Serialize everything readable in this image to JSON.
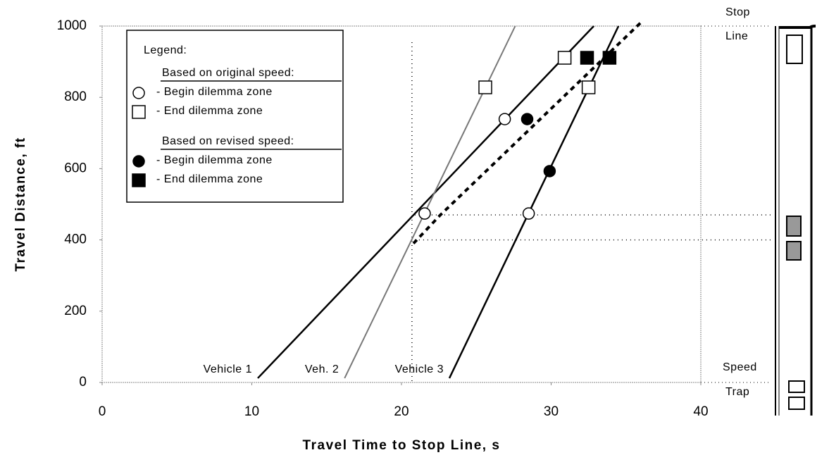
{
  "chart_data": {
    "type": "line",
    "xlabel": "Travel Time to Stop Line, s",
    "ylabel": "Travel Distance, ft",
    "xlim": [
      0,
      40
    ],
    "xticks": [
      0,
      10,
      20,
      30,
      40
    ],
    "ylim": [
      0,
      1000
    ],
    "yticks": [
      0,
      200,
      400,
      600,
      800,
      1000
    ],
    "series": [
      {
        "name": "Vehicle 1",
        "style": "line",
        "color": "#000000",
        "x": [
          10.4,
          32.85
        ],
        "values": [
          12,
          1000
        ]
      },
      {
        "name": "Veh. 2",
        "style": "line",
        "color": "#777777",
        "x": [
          16.2,
          27.6
        ],
        "values": [
          12,
          1000
        ]
      },
      {
        "name": "Vehicle 3",
        "style": "line",
        "color": "#000000",
        "x": [
          23.2,
          34.5
        ],
        "values": [
          12,
          1000
        ]
      },
      {
        "style": "dashed",
        "color": "#000000",
        "x": [
          20.8,
          22.6,
          36
        ],
        "values": [
          390,
          470,
          1010
        ]
      },
      {
        "name": "- Begin dilemma zone",
        "style": "circle-open",
        "group": 0,
        "color": "#000000",
        "x": [
          21.55,
          26.9,
          28.5
        ],
        "values": [
          474,
          739,
          474
        ]
      },
      {
        "name": "- End dilemma zone",
        "style": "square-open",
        "group": 0,
        "color": "#000000",
        "x": [
          25.6,
          30.9,
          32.5
        ],
        "values": [
          828,
          911,
          828
        ]
      },
      {
        "name": "- Begin dilemma zone",
        "style": "circle-filled",
        "group": 1,
        "color": "#000000",
        "x": [
          28.4,
          29.9
        ],
        "values": [
          739,
          593
        ]
      },
      {
        "name": "- End dilemma zone",
        "style": "square-filled",
        "group": 1,
        "color": "#000000",
        "x": [
          32.4,
          33.9
        ],
        "values": [
          911,
          911
        ]
      }
    ],
    "ref_lines": {
      "x": [
        20.7
      ],
      "y": [
        470,
        400
      ]
    },
    "legend": {
      "title": "Legend:",
      "groups": [
        "Based on original speed:",
        "Based on revised speed:"
      ]
    },
    "stop_label": [
      "Stop",
      "Line"
    ],
    "trap_label": [
      "Speed",
      "Trap"
    ]
  }
}
